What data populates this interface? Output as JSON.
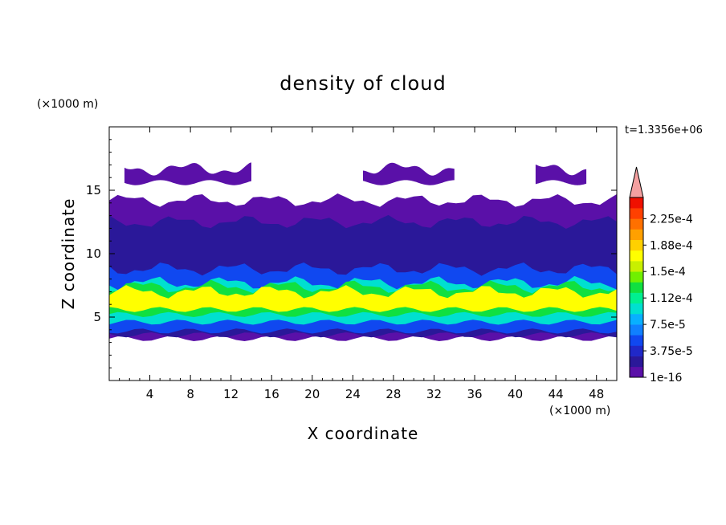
{
  "chart_data": {
    "type": "heatmap",
    "title": "density of cloud",
    "xlabel": "X coordinate",
    "ylabel": "Z coordinate",
    "x_unit_label": "(×1000 m)",
    "y_unit_label": "(×1000 m)",
    "time_label": "t=1.3356e+06",
    "xlim": [
      0,
      50
    ],
    "ylim": [
      0,
      20
    ],
    "x_ticks": [
      "4",
      "8",
      "12",
      "16",
      "20",
      "24",
      "28",
      "32",
      "36",
      "40",
      "44",
      "48"
    ],
    "y_ticks": [
      "5",
      "10",
      "15"
    ],
    "colorbar": {
      "labels": [
        "1e-16",
        "3.75e-5",
        "7.5e-5",
        "1.12e-4",
        "1.5e-4",
        "1.88e-4",
        "2.25e-4"
      ],
      "colors": [
        "#5a10a8",
        "#2a1899",
        "#2028c8",
        "#1048f0",
        "#1080ff",
        "#08b0ff",
        "#00e0d0",
        "#00f090",
        "#10e040",
        "#70f000",
        "#c8f000",
        "#ffff00",
        "#ffd000",
        "#ffa000",
        "#ff7000",
        "#ff4000",
        "#f01000"
      ],
      "extend_color": "#f4a0a0"
    },
    "layers": [
      {
        "level": "1e-16",
        "color": "#5a10a8",
        "z_range": [
          3.3,
          14.2
        ]
      },
      {
        "level": "1e-16",
        "color": "#5a10a8",
        "z_range": [
          15.6,
          16.7
        ],
        "x_spans": [
          [
            1.5,
            14
          ],
          [
            25,
            34
          ],
          [
            42,
            47
          ]
        ]
      },
      {
        "level": "3.75e-5",
        "color": "#2a1899",
        "z_range": [
          3.6,
          12.5
        ]
      },
      {
        "level": "7.5e-5",
        "color": "#1048f0",
        "z_range": [
          3.9,
          8.8
        ]
      },
      {
        "level": "1.12e-4",
        "color": "#00e0d0",
        "z_range": [
          4.6,
          7.7
        ]
      },
      {
        "level": "1.5e-4",
        "color": "#10e040",
        "z_range": [
          5.2,
          7.4
        ]
      },
      {
        "level": "1.88e-4",
        "color": "#ffff00",
        "z_range": [
          5.6,
          7.0
        ]
      }
    ]
  }
}
